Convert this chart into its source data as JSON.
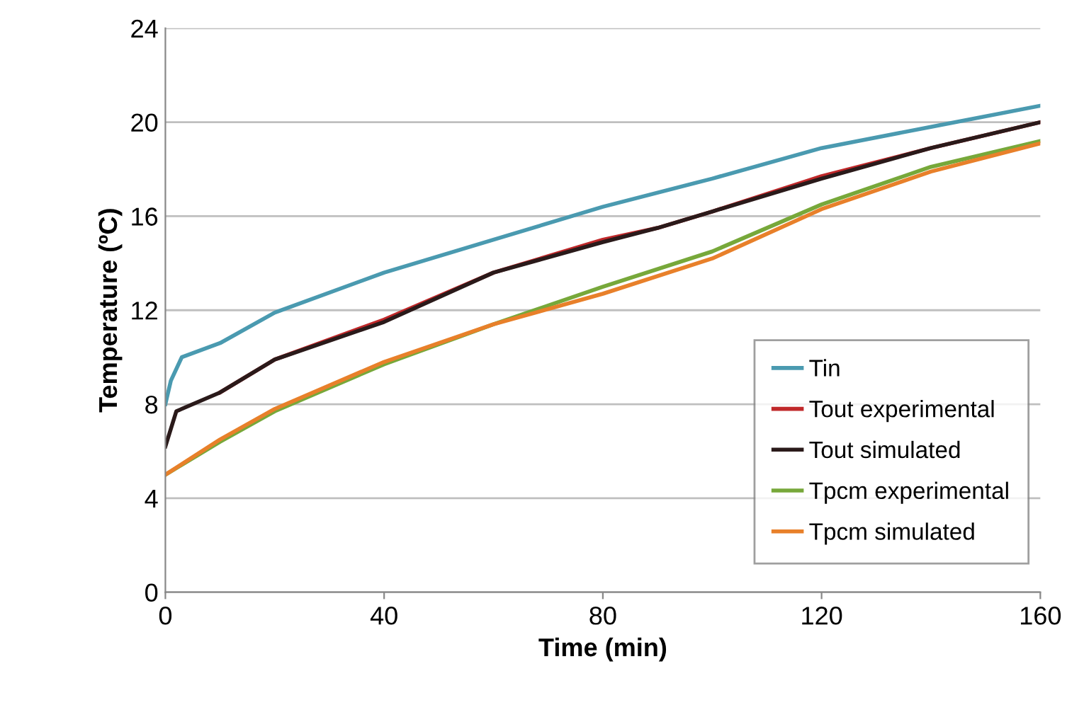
{
  "chart_data": {
    "type": "line",
    "xlabel": "Time (min)",
    "ylabel": "Temperature (ºC)",
    "xlim": [
      0,
      160
    ],
    "ylim": [
      0,
      24
    ],
    "xticks": [
      0,
      40,
      80,
      120,
      160
    ],
    "yticks": [
      0,
      4,
      8,
      12,
      16,
      20,
      24
    ],
    "grid": "y",
    "legend": "bottom right",
    "marker": "none",
    "line_style": "solid",
    "series": [
      {
        "name": "Tin",
        "color": "#4a9ab0",
        "x": [
          0,
          1,
          3,
          10,
          20,
          40,
          60,
          80,
          100,
          120,
          140,
          160
        ],
        "values": [
          8.0,
          9.0,
          10.0,
          10.6,
          11.9,
          13.6,
          15.0,
          16.4,
          17.6,
          18.9,
          19.8,
          20.7
        ]
      },
      {
        "name": "Tout experimental",
        "color": "#c0282a",
        "x": [
          10,
          20,
          40,
          60,
          80,
          90,
          100,
          120,
          140,
          160
        ],
        "values": [
          8.5,
          9.9,
          11.6,
          13.6,
          15.0,
          15.5,
          16.2,
          17.7,
          18.9,
          20.0
        ]
      },
      {
        "name": "Tout simulated",
        "color": "#2a1a1a",
        "x": [
          0,
          2,
          5,
          10,
          20,
          40,
          60,
          80,
          90,
          100,
          120,
          140,
          160
        ],
        "values": [
          6.2,
          7.7,
          8.0,
          8.5,
          9.9,
          11.5,
          13.6,
          14.9,
          15.5,
          16.2,
          17.6,
          18.9,
          20.0
        ]
      },
      {
        "name": "Tpcm experimental",
        "color": "#77a83a",
        "x": [
          0,
          10,
          20,
          40,
          60,
          80,
          100,
          120,
          140,
          160
        ],
        "values": [
          5.0,
          6.4,
          7.7,
          9.7,
          11.4,
          13.0,
          14.5,
          16.5,
          18.1,
          19.2
        ]
      },
      {
        "name": "Tpcm simulated",
        "color": "#e8802a",
        "x": [
          0,
          10,
          20,
          40,
          60,
          80,
          100,
          120,
          140,
          160
        ],
        "values": [
          5.0,
          6.5,
          7.8,
          9.8,
          11.4,
          12.7,
          14.2,
          16.3,
          17.9,
          19.1
        ]
      }
    ]
  }
}
